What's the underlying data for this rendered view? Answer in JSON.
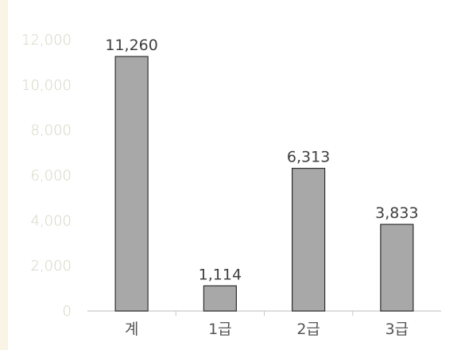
{
  "chart_data": {
    "type": "bar",
    "categories": [
      "계",
      "1급",
      "2급",
      "3급"
    ],
    "values": [
      11260,
      1114,
      6313,
      3833
    ],
    "data_labels": [
      "11,260",
      "1,114",
      "6,313",
      "3,833"
    ],
    "y_ticks": [
      "0",
      "2,000",
      "4,000",
      "6,000",
      "8,000",
      "10,000",
      "12,000"
    ],
    "ylim": [
      0,
      12000
    ],
    "title": "",
    "xlabel": "",
    "ylabel": "",
    "grid": false,
    "legend": "none",
    "colors": {
      "bar_fill": "#a8a8a8",
      "bar_stroke": "#2e2e2e",
      "axis": "#c9c9c9",
      "y_tick_text": "#d3d3c2",
      "x_tick_text": "#555555",
      "data_label_text": "#3f3f3f"
    }
  }
}
